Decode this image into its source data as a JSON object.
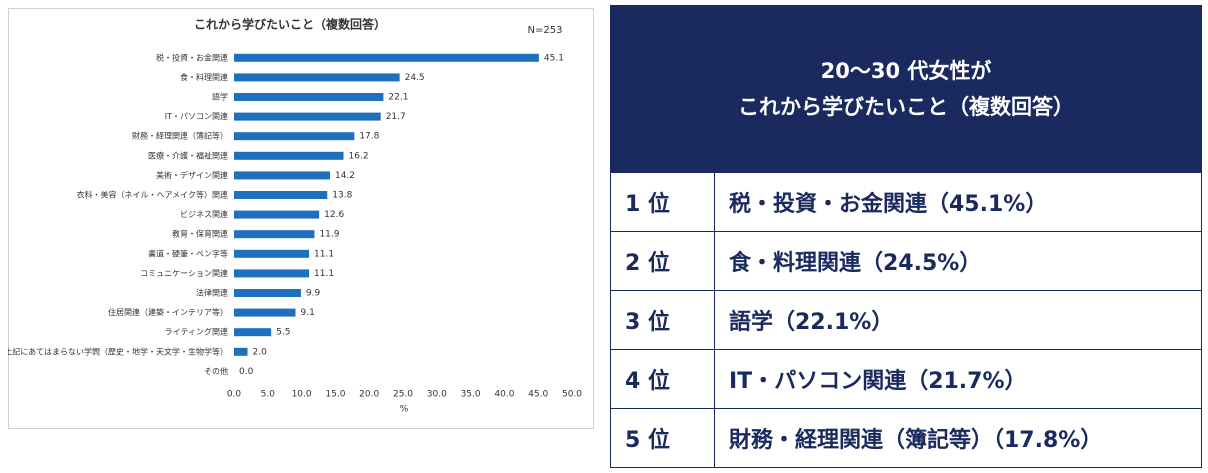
{
  "chart_data": {
    "type": "bar",
    "orientation": "horizontal",
    "title": "これから学びたいこと（複数回答）",
    "annotation": "N=253",
    "xlabel": "%",
    "categories": [
      "税・投資・お金関連",
      "食・料理関連",
      "語学",
      "IT・パソコン関連",
      "財務・経理関連（簿記等）",
      "医療・介護・福祉関連",
      "美術・デザイン関連",
      "衣料・美容（ネイル・ヘアメイク等）関連",
      "ビジネス関連",
      "教育・保育関連",
      "書道・硬筆・ペン字等",
      "コミュニケーション関連",
      "法律関連",
      "住居関連（建築・インテリア等）",
      "ライティング関連",
      "上記にあてはまらない学問（歴史・地学・天文学・生物学等）",
      "その他"
    ],
    "values": [
      45.1,
      24.5,
      22.1,
      21.7,
      17.8,
      16.2,
      14.2,
      13.8,
      12.6,
      11.9,
      11.1,
      11.1,
      9.9,
      9.1,
      5.5,
      2.0,
      0.0
    ],
    "value_labels": [
      "45.1",
      "24.5",
      "22.1",
      "21.7",
      "17.8",
      "16.2",
      "14.2",
      "13.8",
      "12.6",
      "11.9",
      "11.1",
      "11.1",
      "9.9",
      "9.1",
      "5.5",
      "2.0",
      "0.0"
    ],
    "color": "#1f6fbf",
    "grid": false,
    "xlim": [
      0,
      50
    ],
    "xticks": [
      {
        "value": 0,
        "label": "0.0"
      },
      {
        "value": 5,
        "label": "5.0"
      },
      {
        "value": 10,
        "label": "10.0"
      },
      {
        "value": 15,
        "label": "15.0"
      },
      {
        "value": 20,
        "label": "20.0"
      },
      {
        "value": 25,
        "label": "25.0"
      },
      {
        "value": 30,
        "label": "30.0"
      },
      {
        "value": 35,
        "label": "35.0"
      },
      {
        "value": 40,
        "label": "40.0"
      },
      {
        "value": 45,
        "label": "45.0"
      },
      {
        "value": 50,
        "label": "50.0"
      }
    ]
  },
  "table": {
    "header": [
      "20～30 代女性が",
      "これから学びたいこと（複数回答）"
    ],
    "rows": [
      [
        "1 位",
        "税・投資・お金関連（45.1%）"
      ],
      [
        "2 位",
        "食・料理関連（24.5%）"
      ],
      [
        "3 位",
        "語学（22.1%）"
      ],
      [
        "4 位",
        "IT・パソコン関連（21.7%）"
      ],
      [
        "5 位",
        "財務・経理関連（簿記等）（17.8%）"
      ]
    ]
  }
}
